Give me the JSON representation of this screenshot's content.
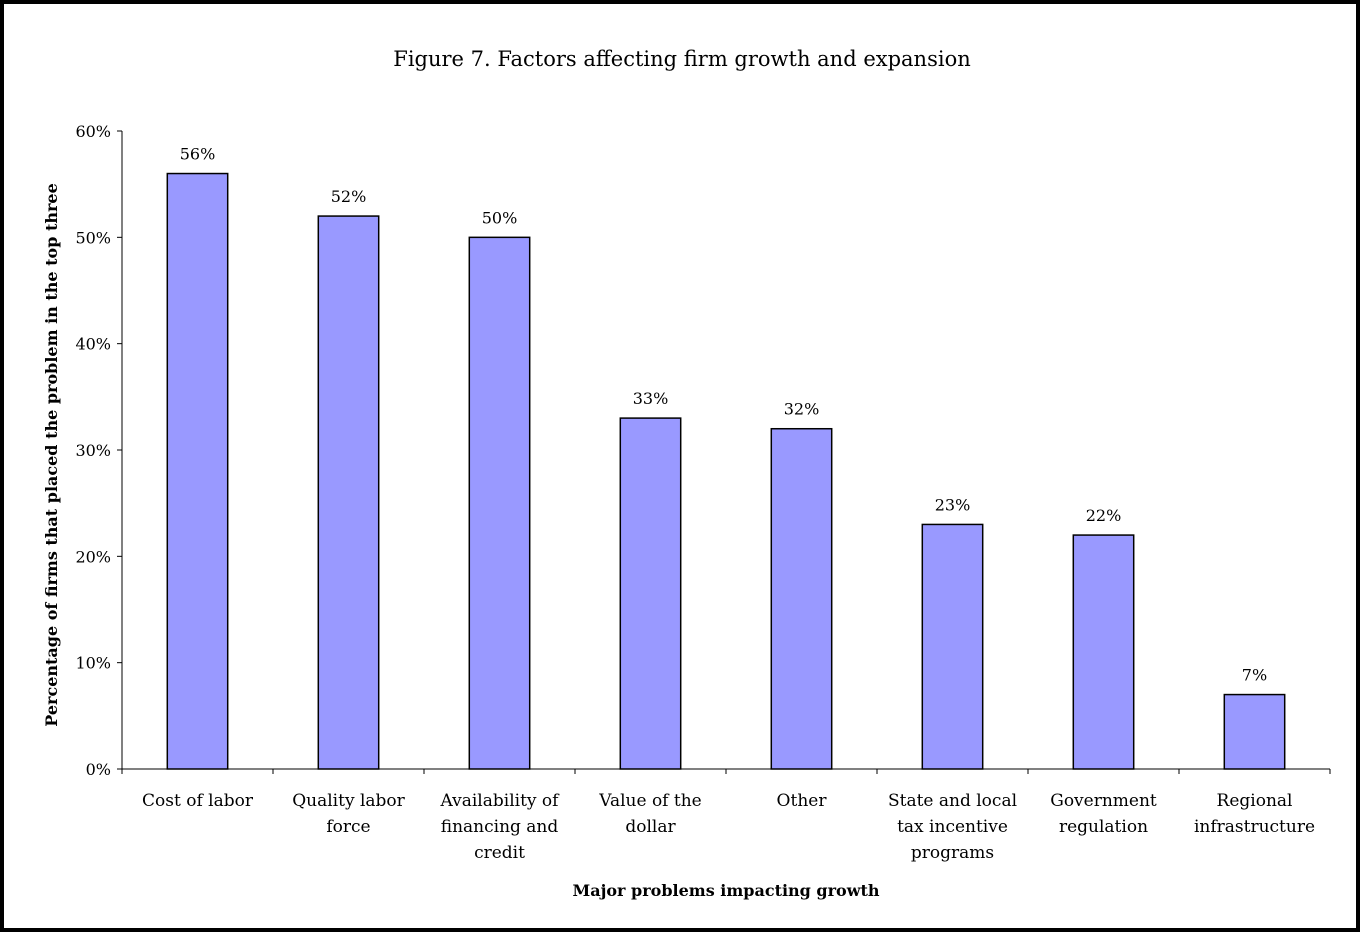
{
  "chart_data": {
    "type": "bar",
    "title": "Figure 7. Factors affecting firm growth and expansion",
    "xlabel": "Major problems impacting growth",
    "ylabel": "Percentage of firms that placed the problem in the top three",
    "categories": [
      [
        "Cost of labor"
      ],
      [
        "Quality labor",
        "force"
      ],
      [
        "Availability of",
        "financing and",
        "credit"
      ],
      [
        "Value of the",
        "dollar"
      ],
      [
        "Other"
      ],
      [
        "State and local",
        "tax incentive",
        "programs"
      ],
      [
        "Government",
        "regulation"
      ],
      [
        "Regional",
        "infrastructure"
      ]
    ],
    "values": [
      56,
      52,
      50,
      33,
      32,
      23,
      22,
      7
    ],
    "value_labels": [
      "56%",
      "52%",
      "50%",
      "33%",
      "32%",
      "23%",
      "22%",
      "7%"
    ],
    "ylim": [
      0,
      60
    ],
    "yticks": [
      0,
      10,
      20,
      30,
      40,
      50,
      60
    ],
    "ytick_labels": [
      "0%",
      "10%",
      "20%",
      "30%",
      "40%",
      "50%",
      "60%"
    ],
    "grid": false,
    "legend": "none",
    "bar_color": "#9999ff",
    "bar_edge_color": "#000000"
  }
}
